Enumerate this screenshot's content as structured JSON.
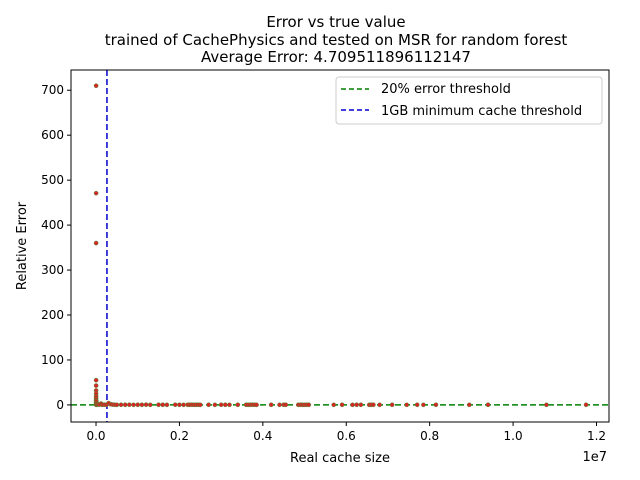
{
  "chart_data": {
    "type": "scatter",
    "title_lines": [
      "Error vs true value",
      "trained of CachePhysics and tested on MSR for random forest",
      "Average Error: 4.709511896112147"
    ],
    "xlabel": "Real cache size",
    "ylabel": "Relative Error",
    "x_offset_label": "1e7",
    "xlim": [
      -600000,
      12300000
    ],
    "ylim": [
      -38,
      745
    ],
    "x_scale": 10000000,
    "x_ticks": [
      0,
      2000000,
      4000000,
      6000000,
      8000000,
      10000000,
      12000000
    ],
    "x_tick_labels": [
      "0.0",
      "0.2",
      "0.4",
      "0.6",
      "0.8",
      "1.0",
      "1.2"
    ],
    "y_ticks": [
      0,
      100,
      200,
      300,
      400,
      500,
      600,
      700
    ],
    "y_tick_labels": [
      "0",
      "100",
      "200",
      "300",
      "400",
      "500",
      "600",
      "700"
    ],
    "grid": false,
    "legend_position": "top-right",
    "point_color": "#d62728",
    "point_edge_color": "#2ca02c",
    "thresholds": [
      {
        "name": "20% error threshold",
        "orientation": "horizontal",
        "value": 0.2,
        "color": "#008000",
        "dash": "dashed"
      },
      {
        "name": "1GB minimum cache threshold",
        "orientation": "vertical",
        "value": 262144,
        "color": "#0000cc",
        "dash": "dashed"
      }
    ],
    "points": [
      [
        2000,
        710
      ],
      [
        2000,
        471
      ],
      [
        2000,
        360
      ],
      [
        2000,
        55
      ],
      [
        2000,
        43
      ],
      [
        2000,
        32
      ],
      [
        2000,
        25
      ],
      [
        2000,
        19
      ],
      [
        2000,
        14
      ],
      [
        2000,
        10
      ],
      [
        2000,
        6
      ],
      [
        2000,
        3
      ],
      [
        2000,
        1
      ],
      [
        2000,
        0.5
      ],
      [
        8000,
        8
      ],
      [
        8000,
        4
      ],
      [
        8000,
        0.3
      ],
      [
        30000,
        2
      ],
      [
        50000,
        1
      ],
      [
        80000,
        0.5
      ],
      [
        120000,
        3
      ],
      [
        150000,
        0.4
      ],
      [
        200000,
        0.6
      ],
      [
        250000,
        0.2
      ],
      [
        300000,
        4
      ],
      [
        350000,
        1.5
      ],
      [
        400000,
        0.8
      ],
      [
        450000,
        0.3
      ],
      [
        500000,
        0.2
      ],
      [
        600000,
        0.4
      ],
      [
        700000,
        0.3
      ],
      [
        800000,
        0.5
      ],
      [
        900000,
        0.2
      ],
      [
        1000000,
        0.4
      ],
      [
        1100000,
        0.3
      ],
      [
        1200000,
        0.6
      ],
      [
        1300000,
        0.2
      ],
      [
        1500000,
        0.4
      ],
      [
        1600000,
        0.3
      ],
      [
        1700000,
        0.2
      ],
      [
        1900000,
        0.5
      ],
      [
        2000000,
        0.3
      ],
      [
        2100000,
        0.2
      ],
      [
        2200000,
        0.4
      ],
      [
        2250000,
        0.3
      ],
      [
        2300000,
        0.5
      ],
      [
        2350000,
        0.2
      ],
      [
        2400000,
        0.3
      ],
      [
        2450000,
        0.4
      ],
      [
        2500000,
        0.2
      ],
      [
        2700000,
        0.3
      ],
      [
        2850000,
        0.2
      ],
      [
        3000000,
        0.4
      ],
      [
        3100000,
        0.3
      ],
      [
        3200000,
        0.2
      ],
      [
        3400000,
        0.3
      ],
      [
        3600000,
        0.4
      ],
      [
        3650000,
        0.2
      ],
      [
        3700000,
        0.3
      ],
      [
        3750000,
        0.5
      ],
      [
        3800000,
        0.3
      ],
      [
        3850000,
        0.2
      ],
      [
        4200000,
        0.3
      ],
      [
        4400000,
        0.2
      ],
      [
        4500000,
        0.4
      ],
      [
        4550000,
        0.3
      ],
      [
        4850000,
        0.2
      ],
      [
        4900000,
        0.4
      ],
      [
        4950000,
        0.3
      ],
      [
        5000000,
        0.2
      ],
      [
        5050000,
        0.4
      ],
      [
        5100000,
        0.3
      ],
      [
        5700000,
        0.2
      ],
      [
        5900000,
        0.3
      ],
      [
        6150000,
        0.2
      ],
      [
        6250000,
        0.4
      ],
      [
        6350000,
        0.3
      ],
      [
        6550000,
        0.2
      ],
      [
        6600000,
        0.4
      ],
      [
        6650000,
        0.3
      ],
      [
        6800000,
        0.2
      ],
      [
        7100000,
        0.3
      ],
      [
        7450000,
        0.2
      ],
      [
        7700000,
        0.3
      ],
      [
        7850000,
        0.2
      ],
      [
        8150000,
        0.3
      ],
      [
        8950000,
        0.2
      ],
      [
        9400000,
        0.3
      ],
      [
        10800000,
        0.2
      ],
      [
        11750000,
        0.3
      ]
    ]
  }
}
